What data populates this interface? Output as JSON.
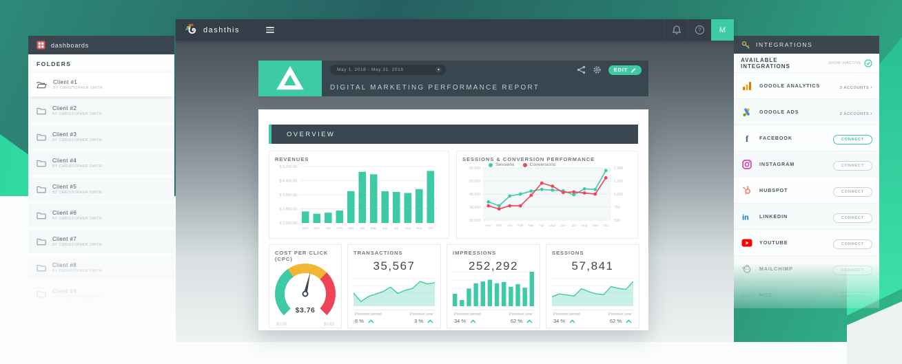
{
  "topbar": {
    "brand": "dashthis",
    "avatar_initial": "M"
  },
  "dashboards_panel": {
    "header": "dashboards",
    "section_title": "FOLDERS",
    "folders": [
      {
        "name": "Client #1",
        "owner": "BY CHRISTOPHER SMITH",
        "active": true
      },
      {
        "name": "Client #2",
        "owner": "BY CHRISTOPHER SMITH",
        "active": false
      },
      {
        "name": "Client #3",
        "owner": "BY CHRISTOPHER SMITH",
        "active": false
      },
      {
        "name": "Client #4",
        "owner": "BY CHRISTOPHER SMITH",
        "active": false
      },
      {
        "name": "Client #5",
        "owner": "BY CHRISTOPHER SMITH",
        "active": false
      },
      {
        "name": "Client #6",
        "owner": "BY CHRISTOPHER SMITH",
        "active": false
      },
      {
        "name": "Client #7",
        "owner": "BY CHRISTOPHER SMITH",
        "active": false
      },
      {
        "name": "Client #8",
        "owner": "BY CHRISTOPHER SMITH",
        "active": false,
        "faded": 0.65
      },
      {
        "name": "Client #9",
        "owner": "BY CHRISTOPHER SMITH",
        "active": false,
        "faded": 0.32
      }
    ]
  },
  "integrations_panel": {
    "header": "INTEGRATIONS",
    "subheader": "AVAILABLE INTEGRATIONS",
    "show_inactive_label": "SHOW INACTIVE",
    "items": [
      {
        "name": "GOOGLE ANALYTICS",
        "icon": "google-analytics-icon",
        "action_type": "accounts",
        "action_label": "3 ACCOUNTS"
      },
      {
        "name": "GOOGLE ADS",
        "icon": "google-ads-icon",
        "action_type": "accounts",
        "action_label": "2 ACCOUNTS"
      },
      {
        "name": "FACEBOOK",
        "icon": "facebook-icon",
        "action_type": "connect",
        "action_label": "CONNECT",
        "highlight": true
      },
      {
        "name": "INSTAGRAM",
        "icon": "instagram-icon",
        "action_type": "connect",
        "action_label": "CONNECT"
      },
      {
        "name": "HUBSPOT",
        "icon": "hubspot-icon",
        "action_type": "connect",
        "action_label": "CONNECT"
      },
      {
        "name": "LINKEDIN",
        "icon": "linkedin-icon",
        "action_type": "connect",
        "action_label": "CONNECT"
      },
      {
        "name": "YOUTUBE",
        "icon": "youtube-icon",
        "action_type": "connect",
        "action_label": "CONNECT"
      },
      {
        "name": "MAILCHIMP",
        "icon": "mailchimp-icon",
        "action_type": "connect",
        "action_label": "CONNECT",
        "faded": 0.55
      },
      {
        "name": "MOZ",
        "icon": "moz-icon",
        "action_type": "connect",
        "action_label": "CONNECT",
        "faded": 0.3
      }
    ]
  },
  "report": {
    "date_range": "May 1, 2018 - May 31, 2018",
    "title": "DIGITAL MARKETING PERFORMANCE REPORT",
    "edit_label": "EDIT",
    "overview_label": "OVERVIEW"
  },
  "colors": {
    "accent_teal": "#3ec9a7",
    "conversion_red": "#ef4358",
    "gauge_yellow": "#f2b632",
    "navbar_dark": "#333e48"
  },
  "chart_data": [
    {
      "id": "revenues",
      "type": "bar",
      "title": "REVENUES",
      "categories": [
        "Nov",
        "Dec",
        "Jan",
        "Feb",
        "Mar",
        "Apr",
        "May",
        "Jun",
        "Jul",
        "Aug",
        "Sep",
        "Oct"
      ],
      "values": [
        2650,
        2520,
        2580,
        2700,
        3800,
        4900,
        4760,
        3800,
        3760,
        3700,
        3920,
        4950
      ],
      "ytick_labels": [
        "$ 2,000.00",
        "$ 2,800.00",
        "$ 3,600.00",
        "$ 4,400.00",
        "$ 5,200.00"
      ],
      "ylim": [
        2000,
        5200
      ],
      "bar_color": "#3ec9a7",
      "grid": true
    },
    {
      "id": "sessions_conversions",
      "type": "line",
      "title": "SESSIONS & CONVERSION PERFORMANCE",
      "categories": [
        "Nov",
        "Dec",
        "Jan",
        "Feb",
        "Mar",
        "Apr",
        "May",
        "Jun",
        "Jul",
        "Aug",
        "Sep",
        "Oct"
      ],
      "series": [
        {
          "name": "Sessions",
          "color": "#3ec9a7",
          "axis": "left",
          "values": [
            34000,
            31000,
            38500,
            40000,
            42200,
            43500,
            43000,
            42500,
            39500,
            44000,
            43500,
            58000
          ]
        },
        {
          "name": "Conversions",
          "color": "#ef4358",
          "axis": "right",
          "values": [
            775,
            715,
            775,
            775,
            975,
            1210,
            1150,
            1030,
            1040,
            1020,
            1000,
            1310
          ]
        }
      ],
      "left_ticks": [
        "60,000",
        "50,000",
        "40,000",
        "30,000",
        "20,000"
      ],
      "right_ticks": [
        "1,500",
        "1,250",
        "1,000",
        "750",
        "500"
      ],
      "left_lim": [
        20000,
        60000
      ],
      "right_lim": [
        500,
        1500
      ],
      "legend_position": "top",
      "grid": true
    },
    {
      "id": "cpc",
      "type": "gauge",
      "title": "COST PER CLICK (CPC)",
      "value": "$3.76",
      "min_label": "$0.00",
      "max_label": "$0.63",
      "segments": [
        "#3ec9a7",
        "#f2b632",
        "#ef4358"
      ],
      "needle_angle_deg": 13
    },
    {
      "id": "transactions",
      "type": "kpi-area",
      "title": "TRANSACTIONS",
      "value": "35,567",
      "spark": [
        38,
        10,
        26,
        34,
        42,
        56,
        36,
        46,
        52,
        74,
        66,
        70
      ],
      "footer": [
        {
          "label": "Previous period",
          "value": "8 %",
          "trend": "up"
        },
        {
          "label": "Previous year",
          "value": "3 %",
          "trend": "up"
        }
      ]
    },
    {
      "id": "impressions",
      "type": "kpi-bar",
      "title": "IMPRESSIONS",
      "value": "252,292",
      "spark": [
        28,
        14,
        40,
        52,
        56,
        60,
        52,
        55,
        44,
        50,
        42,
        78
      ],
      "footer": [
        {
          "label": "Previous period",
          "value": "34 %",
          "trend": "up"
        },
        {
          "label": "Previous year",
          "value": "62 %",
          "trend": "up"
        }
      ]
    },
    {
      "id": "sessions_kpi",
      "type": "kpi-area",
      "title": "SESSIONS",
      "value": "57,841",
      "spark": [
        22,
        30,
        27,
        24,
        44,
        36,
        30,
        28,
        50,
        45,
        42,
        64
      ],
      "footer": [
        {
          "label": "Previous period",
          "value": "34 %",
          "trend": "up"
        },
        {
          "label": "Previous year",
          "value": "62 %",
          "trend": "up"
        }
      ]
    }
  ]
}
